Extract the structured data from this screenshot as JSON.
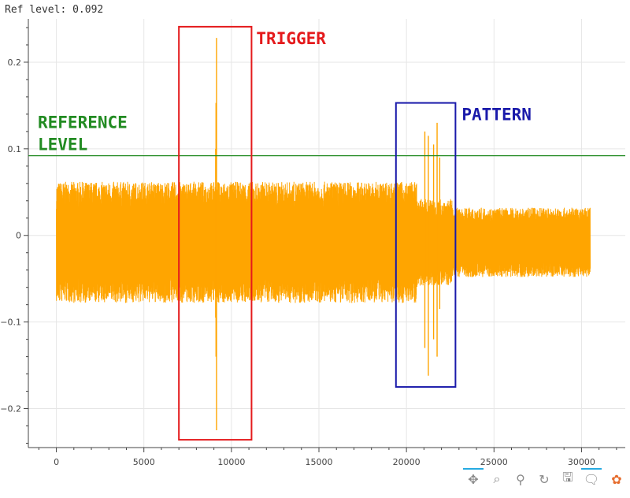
{
  "title": "Ref level: 0.092",
  "colors": {
    "signal": "#ffa500",
    "reference": "#228b22",
    "trigger": "#e41a1c",
    "pattern": "#1a1aaa",
    "grid": "#e6e6e6"
  },
  "annotations": {
    "trigger_label": "TRIGGER",
    "pattern_label": "PATTERN",
    "reference_label": [
      "REFERENCE",
      "LEVEL"
    ]
  },
  "toolbar": [
    "pan-icon",
    "box-zoom-icon",
    "wheel-zoom-icon",
    "reset-icon",
    "save-icon",
    "hover-icon",
    "bokeh-logo-icon"
  ],
  "chart_data": {
    "type": "line",
    "title": "Ref level: 0.092",
    "xlim": [
      -1600,
      32500
    ],
    "ylim": [
      -0.245,
      0.25
    ],
    "x_ticks": [
      0,
      5000,
      10000,
      15000,
      20000,
      25000,
      30000
    ],
    "y_ticks": [
      -0.2,
      -0.1,
      0,
      0.1,
      0.2
    ],
    "y_tick_labels": [
      "−0.2",
      "−0.1",
      "0",
      "0.1",
      "0.2"
    ],
    "grid": true,
    "reference_level": 0.092,
    "series": [
      {
        "color": "#ffa500",
        "x_range": [
          0,
          30500
        ],
        "envelope": [
          {
            "x0": 0,
            "x1": 20600,
            "amp": 0.07
          },
          {
            "x0": 20600,
            "x1": 22600,
            "amp": 0.05
          },
          {
            "x0": 22600,
            "x1": 30500,
            "amp": 0.04
          }
        ],
        "spikes": [
          {
            "x": 9150,
            "top": 0.228,
            "bottom": -0.225
          },
          {
            "x": 9120,
            "top": 0.153,
            "bottom": -0.14
          },
          {
            "x": 9100,
            "top": 0.1,
            "bottom": -0.095
          },
          {
            "x": 21050,
            "top": 0.12,
            "bottom": -0.13
          },
          {
            "x": 21250,
            "top": 0.115,
            "bottom": -0.162
          },
          {
            "x": 21550,
            "top": 0.105,
            "bottom": -0.12
          },
          {
            "x": 21750,
            "top": 0.13,
            "bottom": -0.14
          },
          {
            "x": 21900,
            "top": 0.09,
            "bottom": -0.085
          }
        ]
      }
    ],
    "boxes": [
      {
        "label": "TRIGGER",
        "x0": 7000,
        "x1": 11150,
        "y0": -0.236,
        "y1": 0.241
      },
      {
        "label": "PATTERN",
        "x0": 19400,
        "x1": 22800,
        "y0": -0.175,
        "y1": 0.153
      }
    ]
  }
}
